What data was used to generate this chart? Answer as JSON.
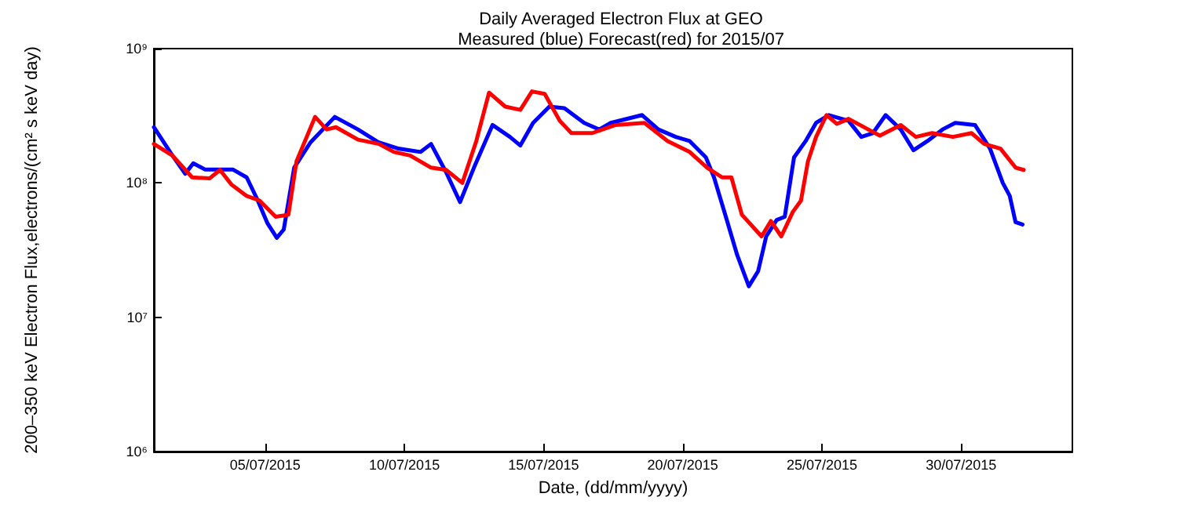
{
  "chart_data": {
    "type": "line",
    "title": "Daily Averaged Electron Flux at GEO",
    "subtitle": "Measured (blue) Forecast(red) for 2015/07",
    "xlabel": "Date, (dd/mm/yyyy)",
    "ylabel": "200–350 keV Electron Flux,electrons/(cm² s keV day)",
    "log": "y",
    "grid": false,
    "marker": "none",
    "line_style": "solid",
    "xlim": [
      "2015-07-01",
      "2015-08-03"
    ],
    "xticks": [
      {
        "value": "2015-07-05",
        "label": "05/07/2015"
      },
      {
        "value": "2015-07-10",
        "label": "10/07/2015"
      },
      {
        "value": "2015-07-15",
        "label": "15/07/2015"
      },
      {
        "value": "2015-07-20",
        "label": "20/07/2015"
      },
      {
        "value": "2015-07-25",
        "label": "25/07/2015"
      },
      {
        "value": "2015-07-30",
        "label": "30/07/2015"
      }
    ],
    "ylim": [
      1000000,
      1000000000
    ],
    "yticks": [
      {
        "value": 1000000,
        "label": "10⁶"
      },
      {
        "value": 10000000,
        "label": "10⁷"
      },
      {
        "value": 100000000,
        "label": "10⁸"
      },
      {
        "value": 1000000000,
        "label": "10⁹"
      }
    ],
    "series": [
      {
        "color": "#0000ff",
        "x": [
          "2015-07-01T00:00",
          "2015-07-01T16:00",
          "2015-07-02T03:00",
          "2015-07-02T10:00",
          "2015-07-02T20:00",
          "2015-07-03T20:00",
          "2015-07-04T08:00",
          "2015-07-04T17:00",
          "2015-07-05T02:00",
          "2015-07-05T10:00",
          "2015-07-05T16:00",
          "2015-07-06T01:00",
          "2015-07-06T15:00",
          "2015-07-07T12:00",
          "2015-07-08T08:00",
          "2015-07-09T02:00",
          "2015-07-09T19:00",
          "2015-07-10T14:00",
          "2015-07-10T23:00",
          "2015-07-11T12:00",
          "2015-07-12T00:00",
          "2015-07-12T12:00",
          "2015-07-13T04:00",
          "2015-07-13T19:00",
          "2015-07-14T04:00",
          "2015-07-14T15:00",
          "2015-07-15T05:00",
          "2015-07-15T18:00",
          "2015-07-16T11:00",
          "2015-07-17T00:00",
          "2015-07-17T10:00",
          "2015-07-18T13:00",
          "2015-07-19T03:00",
          "2015-07-19T18:00",
          "2015-07-20T06:00",
          "2015-07-20T20:00",
          "2015-07-21T03:00",
          "2015-07-21T14:00",
          "2015-07-21T23:00",
          "2015-07-22T09:00",
          "2015-07-22T17:00",
          "2015-07-23T00:00",
          "2015-07-23T09:00",
          "2015-07-23T16:00",
          "2015-07-24T00:00",
          "2015-07-24T10:00",
          "2015-07-24T19:00",
          "2015-07-25T06:00",
          "2015-07-25T23:00",
          "2015-07-26T10:00",
          "2015-07-26T20:00",
          "2015-07-27T07:00",
          "2015-07-27T20:00",
          "2015-07-28T07:00",
          "2015-07-28T19:00",
          "2015-07-29T08:00",
          "2015-07-29T19:00",
          "2015-07-30T12:00",
          "2015-07-31T01:00",
          "2015-07-31T12:00",
          "2015-07-31T18:00",
          "2015-07-31T23:00",
          "2015-08-01T05:00"
        ],
        "values": [
          260000000.0,
          160000000.0,
          117000000.0,
          140000000.0,
          126000000.0,
          126000000.0,
          110000000.0,
          76000000.0,
          50000000.0,
          39000000.0,
          45000000.0,
          130000000.0,
          200000000.0,
          310000000.0,
          250000000.0,
          200000000.0,
          180000000.0,
          170000000.0,
          195000000.0,
          120000000.0,
          72000000.0,
          130000000.0,
          270000000.0,
          220000000.0,
          190000000.0,
          280000000.0,
          370000000.0,
          360000000.0,
          280000000.0,
          250000000.0,
          280000000.0,
          320000000.0,
          250000000.0,
          220000000.0,
          205000000.0,
          155000000.0,
          110000000.0,
          53000000.0,
          29000000.0,
          17000000.0,
          22000000.0,
          40000000.0,
          53000000.0,
          56000000.0,
          155000000.0,
          205000000.0,
          280000000.0,
          320000000.0,
          290000000.0,
          220000000.0,
          235000000.0,
          320000000.0,
          250000000.0,
          175000000.0,
          205000000.0,
          250000000.0,
          280000000.0,
          270000000.0,
          180000000.0,
          100000000.0,
          80000000.0,
          51000000.0,
          49000000.0
        ]
      },
      {
        "color": "#ff0000",
        "x": [
          "2015-07-01T00:00",
          "2015-07-01T16:00",
          "2015-07-02T09:00",
          "2015-07-03T00:00",
          "2015-07-03T09:00",
          "2015-07-03T19:00",
          "2015-07-04T08:00",
          "2015-07-04T19:00",
          "2015-07-05T09:00",
          "2015-07-05T20:00",
          "2015-07-06T03:00",
          "2015-07-06T19:00",
          "2015-07-07T05:00",
          "2015-07-07T13:00",
          "2015-07-08T08:00",
          "2015-07-09T02:00",
          "2015-07-09T15:00",
          "2015-07-10T05:00",
          "2015-07-10T23:00",
          "2015-07-11T12:00",
          "2015-07-12T02:00",
          "2015-07-12T14:00",
          "2015-07-13T01:00",
          "2015-07-13T15:00",
          "2015-07-14T04:00",
          "2015-07-14T14:00",
          "2015-07-15T01:00",
          "2015-07-15T14:00",
          "2015-07-16T00:00",
          "2015-07-16T18:00",
          "2015-07-17T14:00",
          "2015-07-18T15:00",
          "2015-07-19T11:00",
          "2015-07-20T06:00",
          "2015-07-20T21:00",
          "2015-07-21T10:00",
          "2015-07-21T18:00",
          "2015-07-22T03:00",
          "2015-07-22T20:00",
          "2015-07-23T04:00",
          "2015-07-23T13:00",
          "2015-07-23T23:00",
          "2015-07-24T06:00",
          "2015-07-24T12:00",
          "2015-07-24T19:00",
          "2015-07-25T04:00",
          "2015-07-25T13:00",
          "2015-07-25T23:00",
          "2015-07-26T16:00",
          "2015-07-27T02:00",
          "2015-07-27T20:00",
          "2015-07-28T09:00",
          "2015-07-28T23:00",
          "2015-07-29T17:00",
          "2015-07-30T09:00",
          "2015-07-30T20:00",
          "2015-07-31T10:00",
          "2015-07-31T23:00",
          "2015-08-01T06:00"
        ],
        "values": [
          195000000.0,
          160000000.0,
          110000000.0,
          108000000.0,
          125000000.0,
          97000000.0,
          80000000.0,
          74000000.0,
          56000000.0,
          58000000.0,
          145000000.0,
          310000000.0,
          250000000.0,
          260000000.0,
          210000000.0,
          195000000.0,
          170000000.0,
          160000000.0,
          130000000.0,
          125000000.0,
          100000000.0,
          205000000.0,
          470000000.0,
          370000000.0,
          350000000.0,
          480000000.0,
          460000000.0,
          290000000.0,
          235000000.0,
          235000000.0,
          270000000.0,
          280000000.0,
          205000000.0,
          170000000.0,
          130000000.0,
          110000000.0,
          110000000.0,
          58000000.0,
          40000000.0,
          52000000.0,
          40000000.0,
          61000000.0,
          74000000.0,
          145000000.0,
          220000000.0,
          320000000.0,
          275000000.0,
          300000000.0,
          250000000.0,
          225000000.0,
          270000000.0,
          220000000.0,
          235000000.0,
          220000000.0,
          235000000.0,
          195000000.0,
          180000000.0,
          130000000.0,
          125000000.0
        ]
      }
    ]
  }
}
